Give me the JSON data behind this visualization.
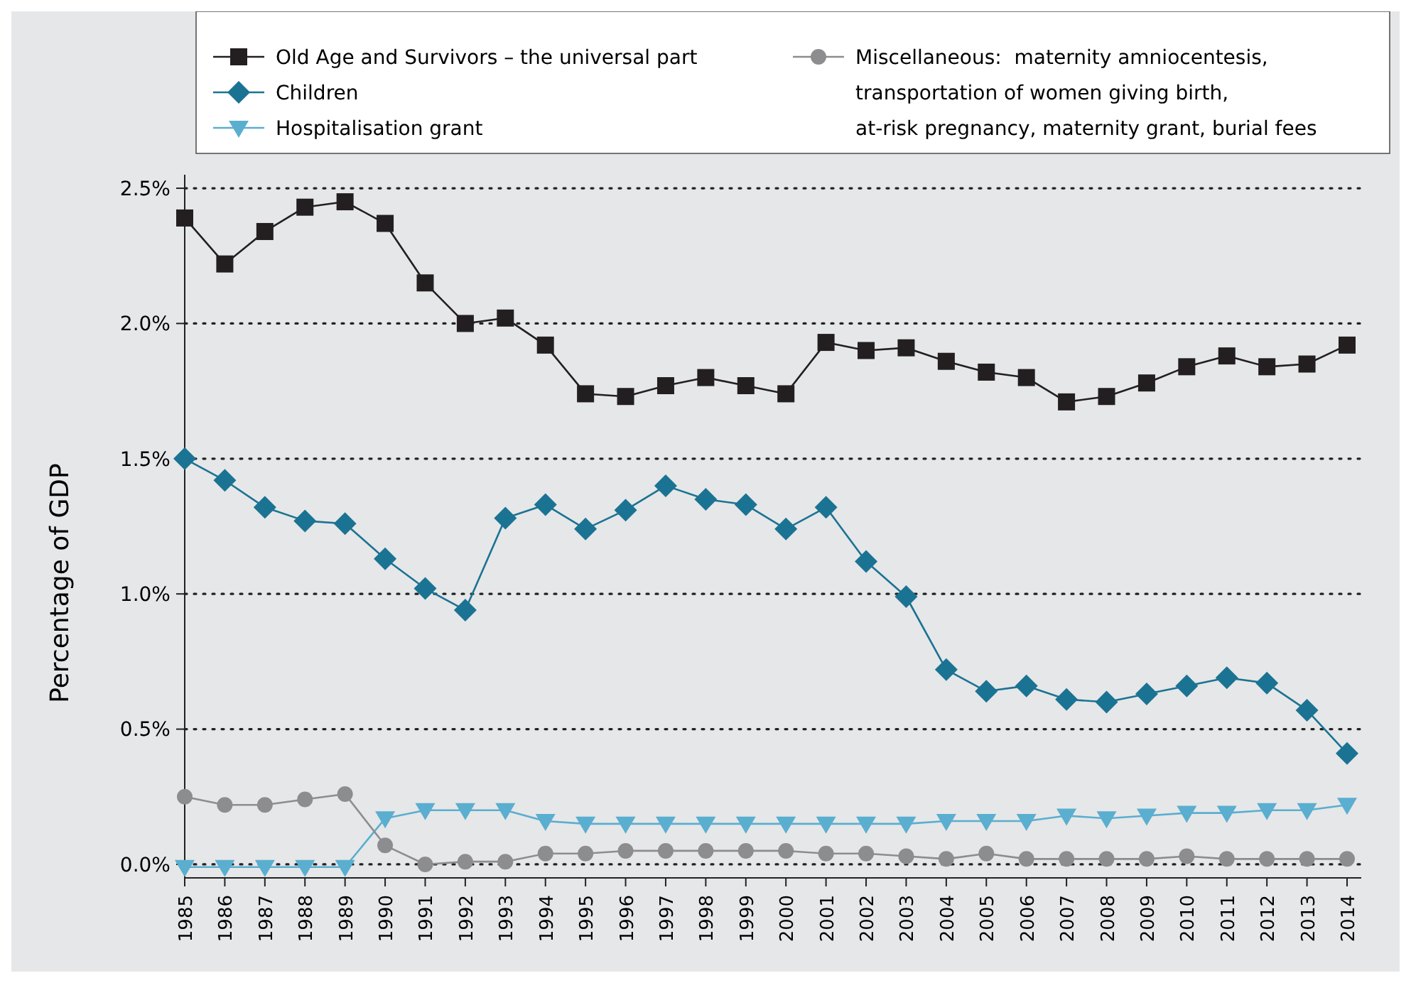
{
  "chart_data": {
    "type": "line",
    "ylabel": "Percentage of GDP",
    "categories": [
      "1985",
      "1986",
      "1987",
      "1988",
      "1989",
      "1990",
      "1991",
      "1992",
      "1993",
      "1994",
      "1995",
      "1996",
      "1997",
      "1998",
      "1999",
      "2000",
      "2001",
      "2002",
      "2003",
      "2004",
      "2005",
      "2006",
      "2007",
      "2008",
      "2009",
      "2010",
      "2011",
      "2012",
      "2013",
      "2014"
    ],
    "series": [
      {
        "name": "Old Age and Survivors – the universal part",
        "color": "#231f20",
        "marker": "square",
        "values": [
          2.39,
          2.22,
          2.34,
          2.43,
          2.45,
          2.37,
          2.15,
          2.0,
          2.02,
          1.92,
          1.74,
          1.73,
          1.77,
          1.8,
          1.77,
          1.74,
          1.93,
          1.9,
          1.91,
          1.86,
          1.82,
          1.8,
          1.71,
          1.73,
          1.78,
          1.84,
          1.88,
          1.84,
          1.85,
          1.92
        ]
      },
      {
        "name": "Children",
        "color": "#1b7393",
        "marker": "diamond",
        "values": [
          1.5,
          1.42,
          1.32,
          1.27,
          1.26,
          1.13,
          1.02,
          0.94,
          1.28,
          1.33,
          1.24,
          1.31,
          1.4,
          1.35,
          1.33,
          1.24,
          1.32,
          1.12,
          0.99,
          0.72,
          0.64,
          0.66,
          0.61,
          0.6,
          0.63,
          0.66,
          0.69,
          0.67,
          0.57,
          0.41
        ]
      },
      {
        "name": "Hospitalisation grant",
        "color": "#5aaed0",
        "marker": "triangle",
        "values": [
          -0.01,
          -0.01,
          -0.01,
          -0.01,
          -0.01,
          0.17,
          0.2,
          0.2,
          0.2,
          0.16,
          0.15,
          0.15,
          0.15,
          0.15,
          0.15,
          0.15,
          0.15,
          0.15,
          0.15,
          0.16,
          0.16,
          0.16,
          0.18,
          0.17,
          0.18,
          0.19,
          0.19,
          0.2,
          0.2,
          0.22
        ]
      },
      {
        "name": "Miscellaneous:  maternity amniocentesis, transportation of women giving birth, at-risk pregnancy, maternity grant, burial fees",
        "color": "#8d8d8f",
        "marker": "circle",
        "values": [
          0.25,
          0.22,
          0.22,
          0.24,
          0.26,
          0.07,
          0.0,
          0.01,
          0.01,
          0.04,
          0.04,
          0.05,
          0.05,
          0.05,
          0.05,
          0.05,
          0.04,
          0.04,
          0.03,
          0.02,
          0.04,
          0.02,
          0.02,
          0.02,
          0.02,
          0.03,
          0.02,
          0.02,
          0.02,
          0.02
        ]
      }
    ],
    "ylim": [
      -0.05,
      2.55
    ],
    "yticks": [
      {
        "value": 0,
        "label": "0.0%"
      },
      {
        "value": 0.5,
        "label": "0.5%"
      },
      {
        "value": 1,
        "label": "1.0%"
      },
      {
        "value": 1.5,
        "label": "1.5%"
      },
      {
        "value": 2,
        "label": "2.0%"
      },
      {
        "value": 2.5,
        "label": "2.5%"
      }
    ],
    "grid": "y",
    "legend": "top",
    "line_style": "solid"
  }
}
